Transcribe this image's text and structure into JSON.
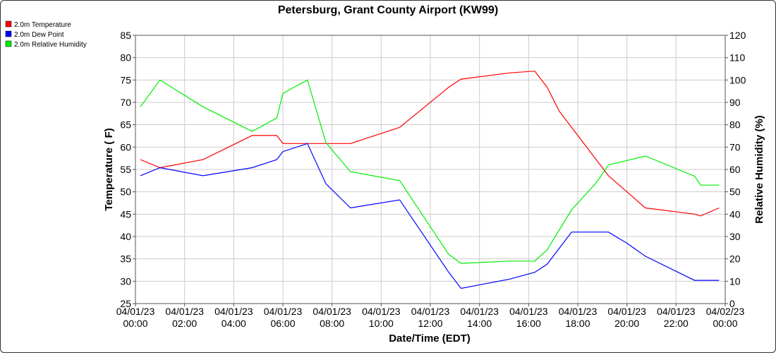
{
  "chart_data": {
    "type": "line",
    "title": "Petersburg, Grant County Airport (KW99)",
    "xlabel": "Date/Time (EDT)",
    "ylabel_left": "Temperature ( F)",
    "ylabel_right": "Relative Humidity (%)",
    "xlim_hours": [
      0,
      24
    ],
    "ylim_left": [
      25,
      85
    ],
    "ylim_right": [
      0,
      120
    ],
    "yticks_left": [
      25,
      30,
      35,
      40,
      45,
      50,
      55,
      60,
      65,
      70,
      75,
      80,
      85
    ],
    "yticks_right": [
      0,
      10,
      20,
      30,
      40,
      50,
      60,
      70,
      80,
      90,
      100,
      110,
      120
    ],
    "xticks": [
      {
        "hour": 0,
        "date": "04/01/23",
        "time": "00:00"
      },
      {
        "hour": 2,
        "date": "04/01/23",
        "time": "02:00"
      },
      {
        "hour": 4,
        "date": "04/01/23",
        "time": "04:00"
      },
      {
        "hour": 6,
        "date": "04/01/23",
        "time": "06:00"
      },
      {
        "hour": 8,
        "date": "04/01/23",
        "time": "08:00"
      },
      {
        "hour": 10,
        "date": "04/01/23",
        "time": "10:00"
      },
      {
        "hour": 12,
        "date": "04/01/23",
        "time": "12:00"
      },
      {
        "hour": 14,
        "date": "04/01/23",
        "time": "14:00"
      },
      {
        "hour": 16,
        "date": "04/01/23",
        "time": "16:00"
      },
      {
        "hour": 18,
        "date": "04/01/23",
        "time": "18:00"
      },
      {
        "hour": 20,
        "date": "04/01/23",
        "time": "20:00"
      },
      {
        "hour": 22,
        "date": "04/01/23",
        "time": "22:00"
      },
      {
        "hour": 24,
        "date": "04/02/23",
        "time": "00:00"
      }
    ],
    "grid": true,
    "legend_position": "top-left",
    "series": [
      {
        "name": "2.0m Temperature",
        "axis": "left",
        "color": "#ff0000",
        "x": [
          0.2,
          1.0,
          2.75,
          4.75,
          5.75,
          6.0,
          7.0,
          7.75,
          8.75,
          10.75,
          12.75,
          13.25,
          15.25,
          16.25,
          16.75,
          17.25,
          17.75,
          18.75,
          19.25,
          20.0,
          20.75,
          22.75,
          23.0,
          23.75
        ],
        "y": [
          57.2,
          55.4,
          57.2,
          62.6,
          62.6,
          60.8,
          60.8,
          60.8,
          60.8,
          64.4,
          73.4,
          75.2,
          76.6,
          77.0,
          73.4,
          68.0,
          64.4,
          57.2,
          53.6,
          50.0,
          46.4,
          45.0,
          44.6,
          46.4
        ]
      },
      {
        "name": "2.0m Dew Point",
        "axis": "left",
        "color": "#0000ff",
        "x": [
          0.2,
          1.0,
          2.75,
          4.75,
          5.75,
          6.0,
          7.0,
          7.75,
          8.75,
          10.75,
          12.75,
          13.25,
          15.25,
          16.25,
          16.75,
          17.25,
          17.5,
          17.75,
          18.75,
          19.25,
          20.0,
          20.75,
          22.75,
          23.75
        ],
        "y": [
          53.6,
          55.4,
          53.6,
          55.4,
          57.2,
          59.0,
          60.8,
          51.8,
          46.4,
          48.2,
          32.0,
          28.4,
          30.5,
          32.0,
          33.8,
          37.4,
          39.2,
          41.0,
          41.0,
          41.0,
          38.5,
          35.6,
          30.2,
          30.2
        ]
      },
      {
        "name": "2.0m Relative Humidity",
        "axis": "right",
        "color": "#00ee00",
        "x": [
          0.2,
          1.0,
          2.75,
          4.75,
          5.75,
          6.0,
          7.0,
          7.75,
          8.75,
          10.75,
          12.75,
          13.25,
          15.25,
          16.25,
          16.75,
          17.25,
          17.75,
          18.75,
          19.25,
          20.0,
          20.75,
          22.75,
          23.0,
          23.75
        ],
        "y": [
          88,
          100,
          88,
          77,
          83,
          94,
          100,
          72,
          59,
          55,
          22,
          18,
          19,
          19,
          24,
          33,
          42,
          54,
          62,
          64,
          66,
          57,
          53,
          53
        ]
      }
    ]
  }
}
